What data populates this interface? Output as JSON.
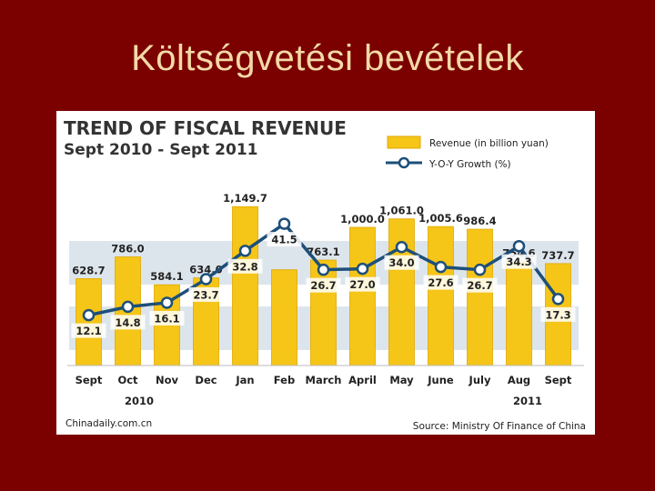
{
  "slide": {
    "title": "Költségvetési bevételek"
  },
  "colors": {
    "background": "#7b0000",
    "title_text": "#f3d9a8",
    "bar": "#f5c518",
    "bar_edge": "#e0a800",
    "line": "#1d4f79",
    "band": "#dde5ec"
  },
  "chart_data": {
    "type": "bar",
    "title": "TREND OF FISCAL REVENUE",
    "subtitle": "Sept 2010 - Sept 2011",
    "categories": [
      "Sept",
      "Oct",
      "Nov",
      "Dec",
      "Jan",
      "Feb",
      "March",
      "April",
      "May",
      "June",
      "July",
      "Aug",
      "Sept"
    ],
    "year_labels": {
      "first": "2010",
      "last": "2011"
    },
    "series": [
      {
        "name": "Revenue (in billion yuan)",
        "kind": "bar",
        "values": [
          628.7,
          786.0,
          584.1,
          634.0,
          1149.7,
          693.0,
          763.1,
          1000.0,
          1061.0,
          1005.6,
          986.4,
          754.6,
          737.7
        ],
        "labels": [
          "628.7",
          "786.0",
          "584.1",
          "634.0",
          "1,149.7",
          "",
          "763.1",
          "1,000.0",
          "1,061.0",
          "1,005.6",
          "986.4",
          "754.6",
          "737.7"
        ]
      },
      {
        "name": "Y-O-Y Growth (%)",
        "kind": "line",
        "values": [
          12.1,
          14.8,
          16.1,
          23.7,
          32.8,
          41.5,
          26.7,
          27.0,
          34.0,
          27.6,
          26.7,
          34.3,
          17.3
        ],
        "labels": [
          "12.1",
          "14.8",
          "16.1",
          "23.7",
          "32.8",
          "41.5",
          "26.7",
          "27.0",
          "34.0",
          "27.6",
          "26.7",
          "34.3",
          "17.3"
        ]
      }
    ],
    "legend_position": "top-right",
    "source_left": "Chinadaily.com.cn",
    "source_right": "Source: Ministry Of Finance of China"
  }
}
